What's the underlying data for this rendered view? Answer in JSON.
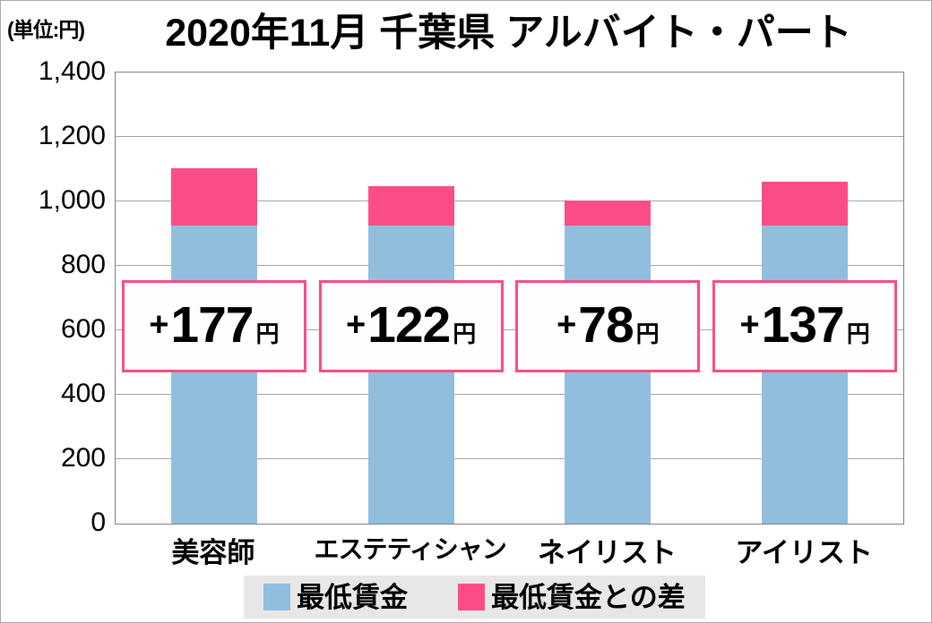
{
  "unit_label": "(単位:円)",
  "title": "2020年11月 千葉県 アルバイト・パート",
  "chart_data": {
    "type": "bar",
    "stacked": true,
    "title": "2020年11月 千葉県 アルバイト・パート",
    "unit": "円",
    "categories": [
      "美容師",
      "エステティシャン",
      "ネイリスト",
      "アイリスト"
    ],
    "series": [
      {
        "name": "最低賃金",
        "color": "#92BEDD",
        "values": [
          925,
          925,
          925,
          925
        ]
      },
      {
        "name": "最低賃金との差",
        "color": "#FB4D85",
        "values": [
          177,
          122,
          78,
          137
        ]
      }
    ],
    "totals": [
      1102,
      1047,
      1003,
      1062
    ],
    "bar_labels": [
      {
        "prefix": "+",
        "value": "177",
        "suffix": "円"
      },
      {
        "prefix": "+",
        "value": "122",
        "suffix": "円"
      },
      {
        "prefix": "+",
        "value": "78",
        "suffix": "円"
      },
      {
        "prefix": "+",
        "value": "137",
        "suffix": "円"
      }
    ],
    "y_ticks": [
      "1,400",
      "1,200",
      "1,000",
      "800",
      "600",
      "400",
      "200",
      "0"
    ],
    "ylim": [
      0,
      1400
    ],
    "grid": true,
    "legend_position": "bottom"
  },
  "legend": {
    "items": [
      {
        "label": "最低賃金",
        "color": "#92BEDD"
      },
      {
        "label": "最低賃金との差",
        "color": "#FB4D85"
      }
    ]
  },
  "colors": {
    "bar_blue": "#92BEDD",
    "bar_pink": "#FB4D85",
    "box_border": "#FB4D85",
    "gridline": "#A3A3A3",
    "plot_border": "#7F7F7F",
    "legend_bg": "#E7E7E7",
    "text": "#000000"
  }
}
